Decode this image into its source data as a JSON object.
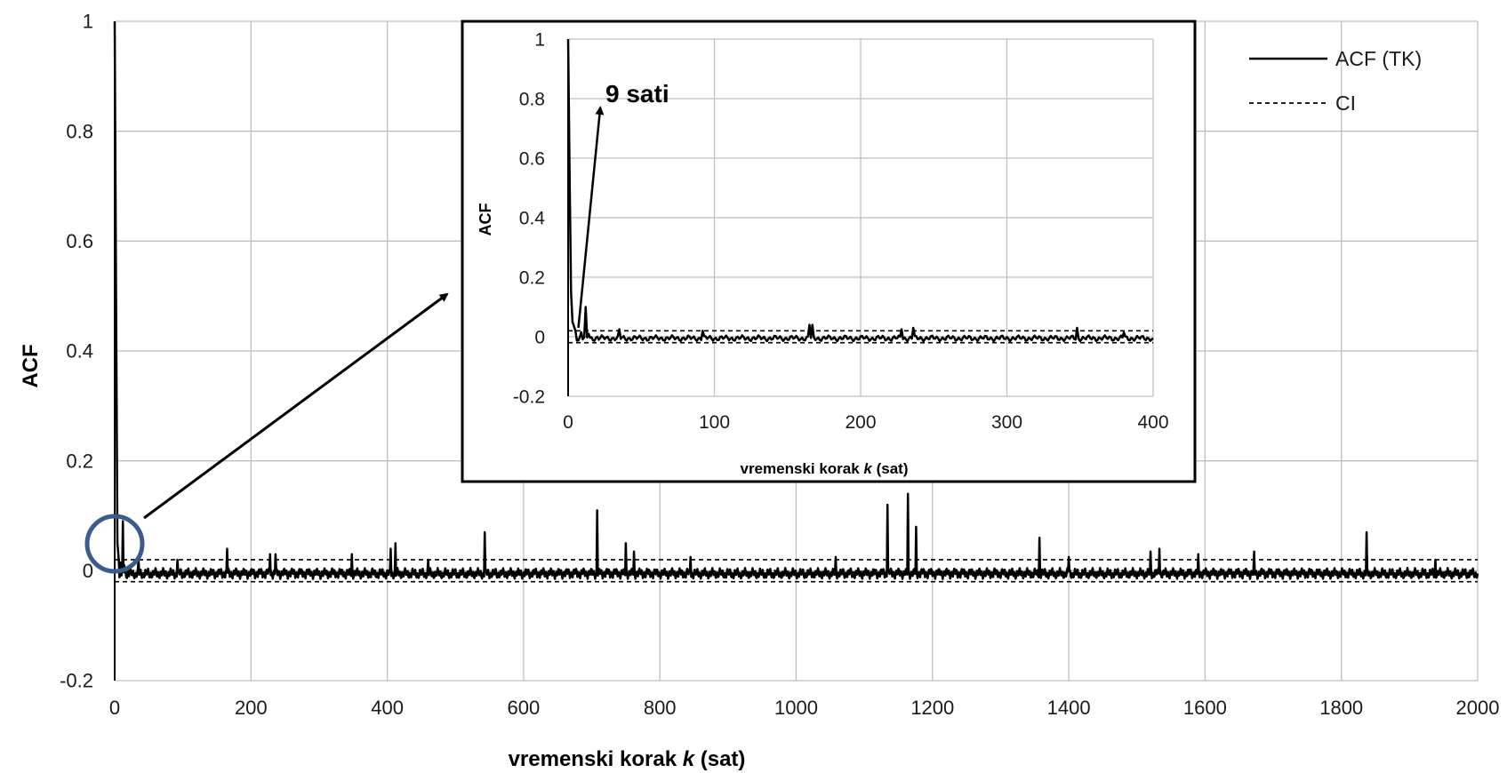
{
  "chart_data": [
    {
      "type": "line",
      "role": "main",
      "xlabel_prefix": "vremenski  korak ",
      "xlabel_var": "k",
      "xlabel_suffix": " (sat)",
      "ylabel": "ACF",
      "xlim": [
        0,
        2000
      ],
      "ylim": [
        -0.2,
        1
      ],
      "x_ticks": [
        0,
        200,
        400,
        600,
        800,
        1000,
        1200,
        1400,
        1600,
        1800,
        2000
      ],
      "y_ticks": [
        1,
        0.8,
        0.6,
        0.4,
        0.2,
        0,
        -0.2
      ],
      "y_tick_labels": [
        "1",
        "0.8",
        "0.6",
        "0.4",
        "0.2",
        "0",
        "-0.2"
      ],
      "grid": true,
      "legend": {
        "position": "top-right",
        "entries": [
          "ACF (TK)",
          "CI"
        ]
      },
      "series": [
        {
          "name": "ACF (TK)",
          "style": "solid",
          "baseline": -0.005,
          "points": [
            [
              0,
              1
            ],
            [
              2,
              0.5
            ],
            [
              4,
              0.05
            ],
            [
              6,
              0.02
            ],
            [
              9,
              0.015
            ],
            [
              12,
              0.09
            ],
            [
              14,
              0.01
            ],
            [
              20,
              0.0
            ],
            [
              35,
              0.02
            ],
            [
              92,
              0.02
            ],
            [
              165,
              0.04
            ],
            [
              228,
              0.03
            ],
            [
              236,
              0.03
            ],
            [
              348,
              0.03
            ],
            [
              405,
              0.04
            ],
            [
              412,
              0.05
            ],
            [
              460,
              0.02
            ],
            [
              543,
              0.07
            ],
            [
              708,
              0.11
            ],
            [
              750,
              0.05
            ],
            [
              762,
              0.035
            ],
            [
              845,
              0.025
            ],
            [
              1058,
              0.025
            ],
            [
              1134,
              0.12
            ],
            [
              1164,
              0.14
            ],
            [
              1176,
              0.08
            ],
            [
              1357,
              0.06
            ],
            [
              1400,
              0.025
            ],
            [
              1520,
              0.035
            ],
            [
              1533,
              0.04
            ],
            [
              1590,
              0.03
            ],
            [
              1672,
              0.035
            ],
            [
              1837,
              0.07
            ],
            [
              1938,
              0.02
            ],
            [
              2000,
              -0.005
            ]
          ]
        },
        {
          "name": "CI",
          "style": "dashed",
          "upper": 0.02,
          "lower": -0.02
        }
      ]
    },
    {
      "type": "line",
      "role": "inset",
      "xlabel_prefix": "vremenski korak ",
      "xlabel_var": "k",
      "xlabel_suffix": " (sat)",
      "ylabel": "ACF",
      "xlim": [
        0,
        400
      ],
      "ylim": [
        -0.2,
        1
      ],
      "x_ticks": [
        0,
        100,
        200,
        300,
        400
      ],
      "y_ticks": [
        1,
        0.8,
        0.6,
        0.4,
        0.2,
        0,
        -0.2
      ],
      "y_tick_labels": [
        "1",
        "0.8",
        "0.6",
        "0.4",
        "0.2",
        "0",
        "-0.2"
      ],
      "grid": true,
      "annotation": {
        "text": "9 sati",
        "arrow_from": [
          7,
          0.03
        ],
        "arrow_to": [
          22,
          0.77
        ]
      },
      "series": [
        {
          "name": "ACF (TK)",
          "style": "solid",
          "baseline": -0.005,
          "points": [
            [
              0,
              1
            ],
            [
              1,
              0.55
            ],
            [
              2,
              0.15
            ],
            [
              3,
              0.05
            ],
            [
              5,
              0.02
            ],
            [
              9,
              0.015
            ],
            [
              12,
              0.1
            ],
            [
              14,
              0.01
            ],
            [
              20,
              0.0
            ],
            [
              35,
              0.025
            ],
            [
              92,
              0.02
            ],
            [
              165,
              0.04
            ],
            [
              167,
              0.04
            ],
            [
              228,
              0.025
            ],
            [
              236,
              0.03
            ],
            [
              348,
              0.03
            ],
            [
              380,
              0.015
            ],
            [
              400,
              -0.005
            ]
          ]
        },
        {
          "name": "CI",
          "style": "dashed",
          "upper": 0.02,
          "lower": -0.02
        }
      ]
    }
  ]
}
